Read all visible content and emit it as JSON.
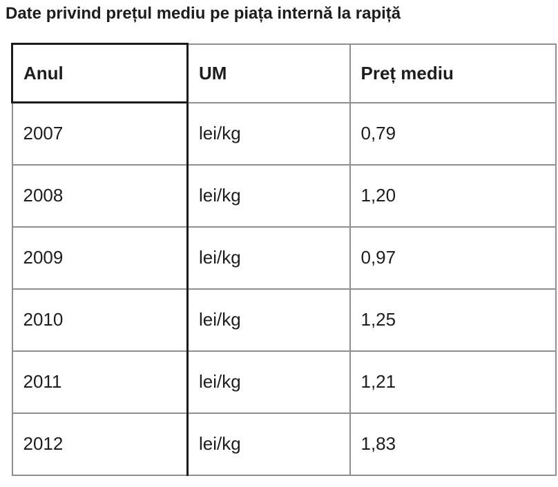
{
  "title": "Date privind prețul mediu pe piața internă la rapiță",
  "table": {
    "columns": [
      "Anul",
      "UM",
      "Preț mediu"
    ],
    "rows": [
      [
        "2007",
        "lei/kg",
        "0,79"
      ],
      [
        "2008",
        "lei/kg",
        "1,20"
      ],
      [
        "2009",
        "lei/kg",
        "0,97"
      ],
      [
        "2010",
        "lei/kg",
        "1,25"
      ],
      [
        "2011",
        "lei/kg",
        "1,21"
      ],
      [
        "2012",
        "lei/kg",
        "1,83"
      ]
    ]
  },
  "colors": {
    "border_gray": "#8f8f8f",
    "border_black": "#1a1a1a",
    "text": "#1d1d1d",
    "background": "#ffffff"
  }
}
